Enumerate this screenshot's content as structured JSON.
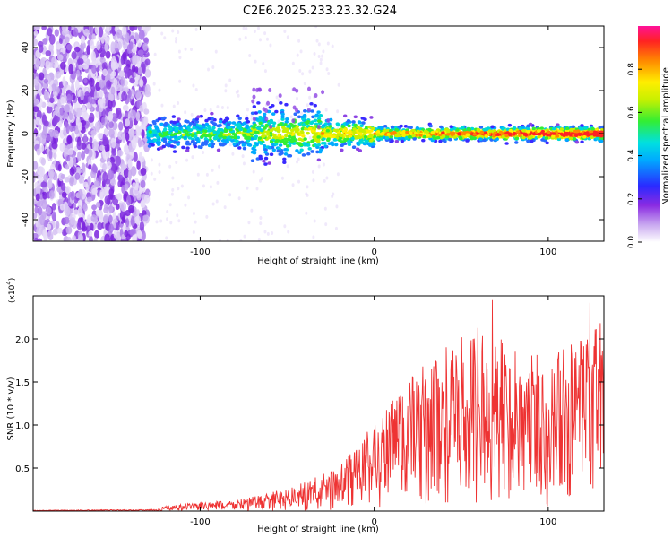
{
  "title": "C2E6.2025.233.23.32.G24",
  "colors": {
    "snr_line": "#ee3333",
    "axis": "#000000",
    "background": "#ffffff"
  },
  "chart_data": [
    {
      "type": "heatmap",
      "name": "spectrogram",
      "xlabel": "Height of straight line (km)",
      "ylabel": "Frequency (Hz)",
      "xlim": [
        -196,
        132
      ],
      "ylim": [
        -50,
        50
      ],
      "xticks": [
        -100,
        0,
        100
      ],
      "yticks": [
        -40,
        -20,
        0,
        20,
        40
      ],
      "colorbar": {
        "label": "Normalized spectral amplitude",
        "range": [
          0,
          1
        ],
        "ticks": [
          0.0,
          0.2,
          0.4,
          0.6,
          0.8
        ],
        "tick_labels": [
          "0.0",
          "0.2",
          "0.4",
          "0.6",
          "0.8"
        ]
      },
      "regions": [
        {
          "x_range": [
            -196,
            -130
          ],
          "frequency_range": [
            -50,
            50
          ],
          "amplitude": "0.1-0.3",
          "description": "broadband noise"
        },
        {
          "x_range": [
            -130,
            0
          ],
          "center_frequency": 0,
          "bandwidth_hz": 6,
          "amplitude": "0.3-0.6"
        },
        {
          "x_range": [
            0,
            132
          ],
          "center_frequency": 0,
          "bandwidth_hz": 3,
          "amplitude": "0.6-1.0"
        }
      ]
    },
    {
      "type": "line",
      "name": "snr",
      "xlabel": "Height of straight line (km)",
      "ylabel": "SNR (10 * v/v)",
      "y_multiplier_label": "(x10",
      "y_multiplier_exp": "4",
      "xlim": [
        -196,
        132
      ],
      "ylim": [
        0,
        2.5
      ],
      "xticks": [
        -100,
        0,
        100
      ],
      "yticks": [
        0.5,
        1.0,
        1.5,
        2.0
      ],
      "ytick_labels": [
        "0.5",
        "1.0",
        "1.5",
        "2.0"
      ],
      "envelope": [
        {
          "x": -196,
          "y": 0.01
        },
        {
          "x": -125,
          "y": 0.02
        },
        {
          "x": -120,
          "y": 0.06
        },
        {
          "x": -100,
          "y": 0.1
        },
        {
          "x": -80,
          "y": 0.12
        },
        {
          "x": -60,
          "y": 0.2
        },
        {
          "x": -40,
          "y": 0.32
        },
        {
          "x": -20,
          "y": 0.5
        },
        {
          "x": 0,
          "y": 1.0
        },
        {
          "x": 20,
          "y": 1.5
        },
        {
          "x": 40,
          "y": 1.8
        },
        {
          "x": 60,
          "y": 2.05
        },
        {
          "x": 80,
          "y": 1.85
        },
        {
          "x": 100,
          "y": 1.75
        },
        {
          "x": 120,
          "y": 1.9
        },
        {
          "x": 132,
          "y": 2.2
        }
      ],
      "peaks": [
        {
          "x": 68,
          "y": 2.45
        },
        {
          "x": 124,
          "y": 2.42
        },
        {
          "x": 132,
          "y": 2.3
        }
      ]
    }
  ]
}
